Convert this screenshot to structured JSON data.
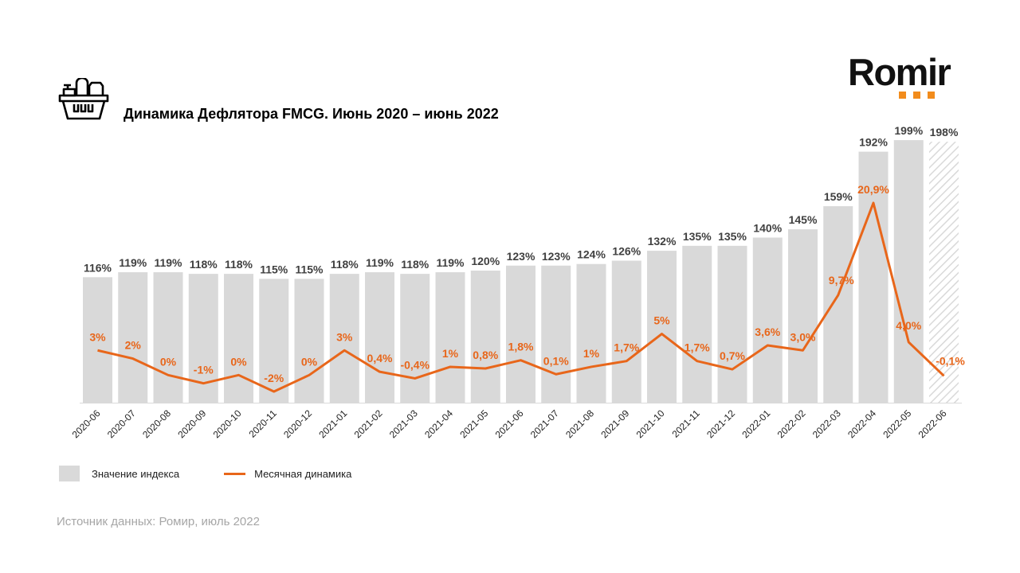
{
  "header": {
    "title": "Динамика Дефлятора FMCG. Июнь 2020 – июнь 2022",
    "icon": "shopping-basket-icon",
    "logo": "Romir"
  },
  "chart_data": {
    "type": "bar+line",
    "title": "Динамика Дефлятора FMCG. Июнь 2020 – июнь 2022",
    "categories": [
      "2020-06",
      "2020-07",
      "2020-08",
      "2020-09",
      "2020-10",
      "2020-11",
      "2020-12",
      "2021-01",
      "2021-02",
      "2021-03",
      "2021-04",
      "2021-05",
      "2021-06",
      "2021-07",
      "2021-08",
      "2021-09",
      "2021-10",
      "2021-11",
      "2021-12",
      "2022-01",
      "2022-02",
      "2022-03",
      "2022-04",
      "2022-05",
      "2022-06"
    ],
    "series": [
      {
        "name": "Значение индекса",
        "type": "bar",
        "color": "#d9d9d9",
        "values": [
          116,
          119,
          119,
          118,
          118,
          115,
          115,
          118,
          119,
          118,
          119,
          120,
          123,
          123,
          124,
          126,
          132,
          135,
          135,
          140,
          145,
          159,
          192,
          199,
          198
        ],
        "labels": [
          "116%",
          "119%",
          "119%",
          "118%",
          "118%",
          "115%",
          "115%",
          "118%",
          "119%",
          "118%",
          "119%",
          "120%",
          "123%",
          "123%",
          "124%",
          "126%",
          "132%",
          "135%",
          "135%",
          "140%",
          "145%",
          "159%",
          "192%",
          "199%",
          "198%"
        ],
        "hatched_last": true
      },
      {
        "name": "Месячная динамика",
        "type": "line",
        "color": "#e8661a",
        "values": [
          3,
          2,
          0,
          -1,
          0,
          -2,
          0,
          3,
          0.4,
          -0.4,
          1,
          0.8,
          1.8,
          0.1,
          1,
          1.7,
          5,
          1.7,
          0.7,
          3.6,
          3.0,
          9.7,
          20.9,
          4.0,
          -0.1
        ],
        "labels": [
          "3%",
          "2%",
          "0%",
          "-1%",
          "0%",
          "-2%",
          "0%",
          "3%",
          "0,4%",
          "-0,4%",
          "1%",
          "0,8%",
          "1,8%",
          "0,1%",
          "1%",
          "1,7%",
          "5%",
          "1,7%",
          "0,7%",
          "3,6%",
          "3,0%",
          "9,7%",
          "20,9%",
          "4,0%",
          "-0,1%"
        ]
      }
    ],
    "bar_axis_range": [
      40,
      200
    ],
    "line_axis_range": [
      -4,
      22
    ],
    "grid": false,
    "legend": "bottom-left"
  },
  "legend": {
    "index_label": "Значение индекса",
    "dynamics_label": "Месячная динамика"
  },
  "footer": {
    "source": "Источник данных: Ромир, июль 2022"
  }
}
